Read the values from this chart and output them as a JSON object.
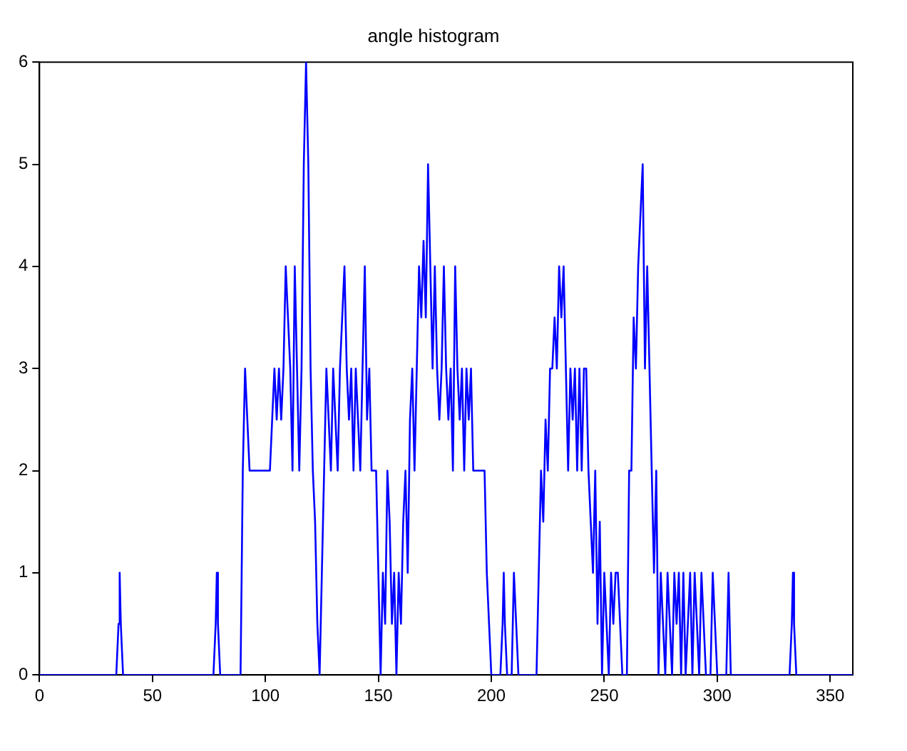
{
  "chart_data": {
    "type": "line",
    "title": "angle histogram",
    "x": [
      0,
      34,
      35,
      35.5,
      36,
      37,
      77,
      78,
      78.5,
      79,
      80,
      89,
      90,
      91,
      92,
      93,
      102,
      103,
      104,
      105,
      106,
      107,
      108,
      109,
      110,
      111,
      112,
      113,
      114,
      115,
      116,
      117,
      118,
      119,
      120,
      121,
      122,
      123,
      124,
      125,
      126,
      127,
      128,
      129,
      130,
      131,
      132,
      133,
      134,
      135,
      136,
      137,
      138,
      139,
      140,
      141,
      142,
      143,
      144,
      145,
      146,
      147,
      149,
      150,
      151,
      152,
      153,
      154,
      155,
      156,
      157,
      158,
      159,
      160,
      161,
      162,
      163,
      164,
      165,
      166,
      167,
      168,
      169,
      170,
      171,
      172,
      173,
      174,
      175,
      176,
      177,
      178,
      179,
      180,
      181,
      182,
      183,
      184,
      185,
      186,
      187,
      188,
      189,
      190,
      191,
      192,
      197,
      198,
      199,
      200,
      204,
      205,
      205.5,
      206,
      207,
      209,
      210,
      211,
      212,
      220,
      221,
      222,
      223,
      224,
      225,
      226,
      227,
      228,
      229,
      230,
      231,
      232,
      233,
      234,
      235,
      236,
      237,
      238,
      239,
      240,
      241,
      242,
      243,
      244,
      245,
      246,
      247,
      248,
      249,
      250,
      251,
      252,
      253,
      254,
      255,
      256,
      257,
      258,
      260,
      261,
      262,
      263,
      264,
      265,
      266,
      267,
      268,
      269,
      270,
      271,
      272,
      273,
      274,
      275,
      276,
      277,
      278,
      279,
      280,
      281,
      282,
      283,
      284,
      285,
      286,
      287,
      288,
      289,
      290,
      291,
      292,
      293,
      294,
      295,
      297,
      298,
      299,
      300,
      304,
      305,
      306,
      332,
      333,
      333.5,
      334,
      335,
      360
    ],
    "values": [
      0,
      0,
      0.5,
      1,
      0.5,
      0,
      0,
      0.5,
      1,
      0.5,
      0,
      0,
      2,
      3,
      2.5,
      2,
      2,
      2.5,
      3,
      2.5,
      3,
      2.5,
      3,
      4,
      3.5,
      3,
      2,
      4,
      3,
      2,
      3,
      5,
      6,
      5,
      3,
      2,
      1.5,
      0.5,
      0,
      1,
      2,
      3,
      2.5,
      2,
      3,
      2.5,
      2,
      3,
      3.5,
      4,
      3,
      2.5,
      3,
      2,
      3,
      2.5,
      2,
      3,
      4,
      2.5,
      3,
      2,
      2,
      1,
      0,
      1,
      0.5,
      2,
      1.5,
      0.5,
      1,
      0,
      1,
      0.5,
      1.5,
      2,
      1,
      2.5,
      3,
      2,
      3,
      4,
      3.5,
      4.25,
      3.5,
      5,
      4,
      3,
      4,
      3,
      2.5,
      3,
      4,
      3,
      2.5,
      3,
      2,
      4,
      3,
      2.5,
      3,
      2,
      3,
      2.5,
      3,
      2,
      2,
      1,
      0.5,
      0,
      0,
      0.5,
      1,
      0.5,
      0,
      0,
      1,
      0.5,
      0,
      0,
      1,
      2,
      1.5,
      2.5,
      2,
      3,
      3,
      3.5,
      3,
      4,
      3.5,
      4,
      3,
      2,
      3,
      2.5,
      3,
      2,
      3,
      2,
      3,
      3,
      2,
      1.5,
      1,
      2,
      0.5,
      1.5,
      0,
      1,
      0.5,
      0,
      1,
      0.5,
      1,
      1,
      0.5,
      0,
      0,
      2,
      2,
      3.5,
      3,
      4,
      4.5,
      5,
      3,
      4,
      3,
      2,
      1,
      2,
      0,
      1,
      0.5,
      0,
      1,
      0.5,
      0,
      1,
      0.5,
      1,
      0,
      1,
      0,
      0.5,
      1,
      0,
      1,
      0.5,
      0,
      1,
      0.5,
      0,
      0,
      1,
      0.5,
      0,
      0,
      1,
      0,
      0,
      0.5,
      1,
      0.5,
      0,
      0
    ],
    "color": "#0000ff",
    "marker": "none",
    "line_style": "solid",
    "xlim": [
      0,
      360
    ],
    "xticks": [
      0,
      50,
      100,
      150,
      200,
      250,
      300,
      350
    ],
    "ylim": [
      0,
      6
    ],
    "yticks": [
      0,
      1,
      2,
      3,
      4,
      5,
      6
    ],
    "grid": false,
    "legend": false
  }
}
